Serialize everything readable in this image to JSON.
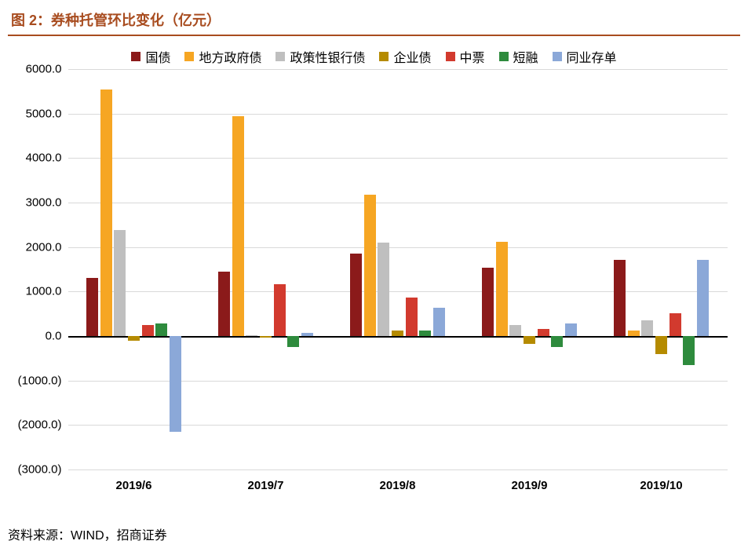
{
  "figure_title": "图 2：券种托管环比变化（亿元）",
  "source_text": "资料来源：WIND，招商证券",
  "chart": {
    "type": "bar",
    "background_color": "#ffffff",
    "grid_color": "#d9d9d9",
    "axis_color": "#000000",
    "legend_fontsize": 16,
    "axis_fontsize": 15,
    "ylim": [
      -3000,
      6000
    ],
    "ytick_step": 1000,
    "ytick_labels": [
      "(3000.0)",
      "(2000.0)",
      "(1000.0)",
      "0.0",
      "1000.0",
      "2000.0",
      "3000.0",
      "4000.0",
      "5000.0",
      "6000.0"
    ],
    "categories": [
      "2019/6",
      "2019/7",
      "2019/8",
      "2019/9",
      "2019/10"
    ],
    "series": [
      {
        "name": "国债",
        "color": "#8b1a1a",
        "values": [
          1300,
          1450,
          1850,
          1530,
          1720
        ]
      },
      {
        "name": "地方政府债",
        "color": "#f6a623",
        "values": [
          5550,
          4950,
          3170,
          2120,
          120
        ]
      },
      {
        "name": "政策性银行债",
        "color": "#bfbfbf",
        "values": [
          2380,
          20,
          2100,
          250,
          350
        ]
      },
      {
        "name": "企业债",
        "color": "#b58b00",
        "values": [
          -100,
          -40,
          120,
          -180,
          -400
        ]
      },
      {
        "name": "中票",
        "color": "#d23a2e",
        "values": [
          240,
          1160,
          860,
          160,
          520
        ]
      },
      {
        "name": "短融",
        "color": "#2e8b3d",
        "values": [
          280,
          -250,
          130,
          -250,
          -660
        ]
      },
      {
        "name": "同业存单",
        "color": "#8ba8d8",
        "values": [
          -2150,
          70,
          630,
          280,
          1710
        ]
      }
    ],
    "bar_gap_ratio": 0.02,
    "group_gap_ratio": 0.28
  }
}
